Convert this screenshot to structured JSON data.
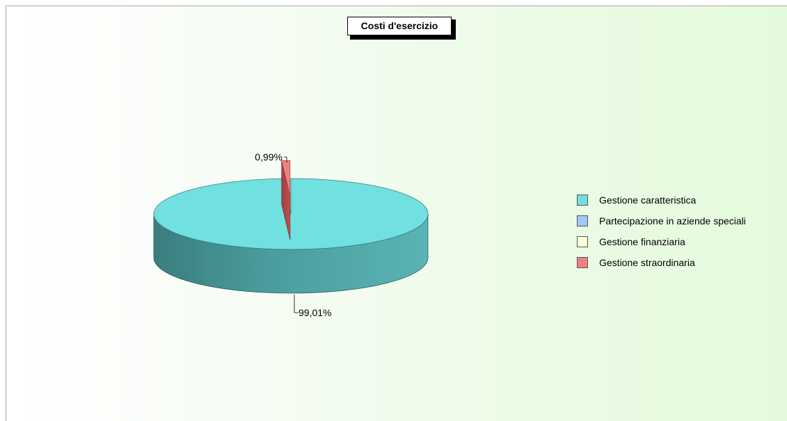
{
  "chart_data": {
    "type": "pie",
    "title": "Costi d'esercizio",
    "categories": [
      "Gestione caratteristica",
      "Partecipazione in aziende speciali",
      "Gestione finanziaria",
      "Gestione straordinaria"
    ],
    "values": [
      99.01,
      0,
      0,
      0.99
    ],
    "value_labels": [
      "99,01%",
      "",
      "",
      "0,99%"
    ],
    "colors": [
      "#70e0e0",
      "#a0c8f8",
      "#ffffd8",
      "#f08080"
    ],
    "legend_position": "right",
    "style": "3d-exploded"
  }
}
